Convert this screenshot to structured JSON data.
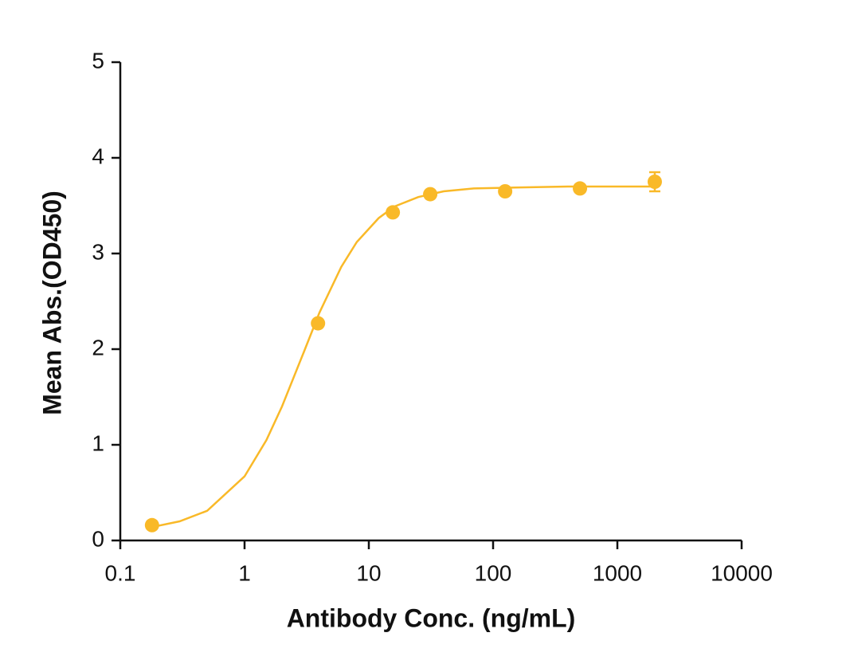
{
  "chart_data": {
    "type": "scatter",
    "x_label": "Antibody Conc. (ng/mL)",
    "y_label": "Mean Abs.(OD450)",
    "color": "#f9b928",
    "log_x": true,
    "xlim": [
      0.1,
      10000
    ],
    "xticks": [
      0.1,
      1,
      10,
      100,
      1000,
      10000
    ],
    "ylim": [
      0,
      5
    ],
    "yticks": [
      0,
      1,
      2,
      3,
      4,
      5
    ],
    "series": [
      {
        "style": "markers",
        "x": [
          0.18,
          3.9,
          15.6,
          31.2,
          125,
          500,
          2000
        ],
        "values": [
          0.16,
          2.27,
          3.43,
          3.62,
          3.65,
          3.68,
          3.75
        ],
        "errors": [
          null,
          null,
          null,
          null,
          null,
          null,
          0.1
        ]
      },
      {
        "style": "line",
        "x": [
          0.18,
          0.3,
          0.5,
          1,
          1.5,
          2,
          3,
          4,
          6,
          8,
          12,
          16,
          25,
          40,
          70,
          150,
          400,
          1000,
          2000
        ],
        "values": [
          0.14,
          0.2,
          0.31,
          0.67,
          1.05,
          1.4,
          1.97,
          2.38,
          2.86,
          3.12,
          3.37,
          3.49,
          3.59,
          3.65,
          3.68,
          3.69,
          3.7,
          3.7,
          3.7
        ]
      }
    ]
  }
}
